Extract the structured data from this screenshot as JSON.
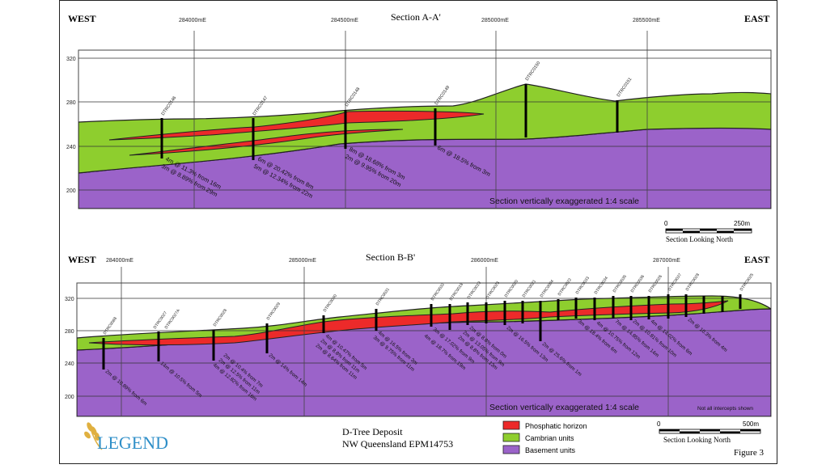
{
  "colors": {
    "phosphatic": "#ec2a2a",
    "cambrian": "#8ece2e",
    "basement": "#9b63c9",
    "grid": "#333333",
    "logo_blue": "#2f8fc8",
    "logo_wheat": "#e0b040"
  },
  "section_a": {
    "title": "Section A-A'",
    "west": "WEST",
    "east": "EAST",
    "eastings": [
      "284000mE",
      "284500mE",
      "285000mE",
      "285500mE"
    ],
    "rl_labels": [
      "320",
      "280",
      "240",
      "200"
    ],
    "holes": [
      "DTRC0146",
      "DTRC0147",
      "DTRC0148",
      "DTRC0149",
      "DTRC0150",
      "DTRC0151"
    ],
    "intercepts": [
      "4m @ 11.3% from 16m",
      "3m @ 8.89% from 29m",
      "6m @ 20.42% from 8m",
      "5m @ 12.34% from 22m",
      "8m @ 18.68% from 3m",
      "2m @ 9.95% from 20m",
      "6m @ 18.5% from 3m"
    ],
    "note": "Section vertically exaggerated 1:4 scale",
    "scale_start": "0",
    "scale_end": "250m",
    "view": "Section Looking North"
  },
  "section_b": {
    "title": "Section B-B'",
    "west": "WEST",
    "east": "EAST",
    "eastings": [
      "284000mE",
      "285000mE",
      "286000mE",
      "287000mE"
    ],
    "rl_labels": [
      "320",
      "280",
      "240",
      "200"
    ],
    "holes": [
      "DTRC0068",
      "DTRC0027",
      "DTRC0027A",
      "DTRC0028",
      "DTRC0029",
      "DTRC0030",
      "DTRC0031",
      "DTRC0032",
      "DTRC0018",
      "DTRC0019",
      "DTRC0023",
      "DTRC0020",
      "DTRC0021",
      "DTRC0004",
      "DTRC0022",
      "DTRC0033",
      "DTRC0034",
      "DTRC0035",
      "DTRC0036",
      "DTRC0026",
      "DTRC0037",
      "DTRC0028",
      "DTRC0025"
    ],
    "intercepts": [
      "2m @ 10.89% from 6m",
      "14m @ 10.5% from 5m",
      "2m @ 10.4% from 7m",
      "2m @ 12.5% from 11m",
      "4m @ 12.82% from 16m",
      "2m @ 14% from 14m",
      "4m @ 10.47% from 5m",
      "2m @ 8.8% from 11m",
      "2m @ 8.64% from 11m",
      "4m @ 16.5% from 3m",
      "3m @ 9.75% from 11m",
      "3m @ 17.02% from 9m",
      "4m @ 18.7% from 19m",
      "2m @ 8.8% from 0m",
      "2m @ 13.05% from 9m",
      "2m @ 8.8% from 13m",
      "2m @ 16.5% from 13m",
      "2m @ 25.6% from 1m",
      "3m @ 18.4% from 6m",
      "4m @ 10.75% from 12m",
      "7m @ 14.85% from 14m",
      "2m @ 10.81% from 10m",
      "4m @ 14.02% from 6m",
      "2m @ 10.3% from 4m"
    ],
    "note": "Section vertically exaggerated 1:4 scale",
    "note2": "Not all intercepts shown",
    "scale_start": "0",
    "scale_end": "500m",
    "view": "Section Looking North"
  },
  "legend": {
    "items": [
      {
        "label": "Phosphatic horizon",
        "color": "#ec2a2a"
      },
      {
        "label": "Cambrian units",
        "color": "#8ece2e"
      },
      {
        "label": "Basement units",
        "color": "#9b63c9"
      }
    ]
  },
  "footer": {
    "logo": "LEGEND",
    "deposit": "D-Tree Deposit",
    "location": "NW Queensland EPM14753",
    "figure": "Figure 3"
  }
}
